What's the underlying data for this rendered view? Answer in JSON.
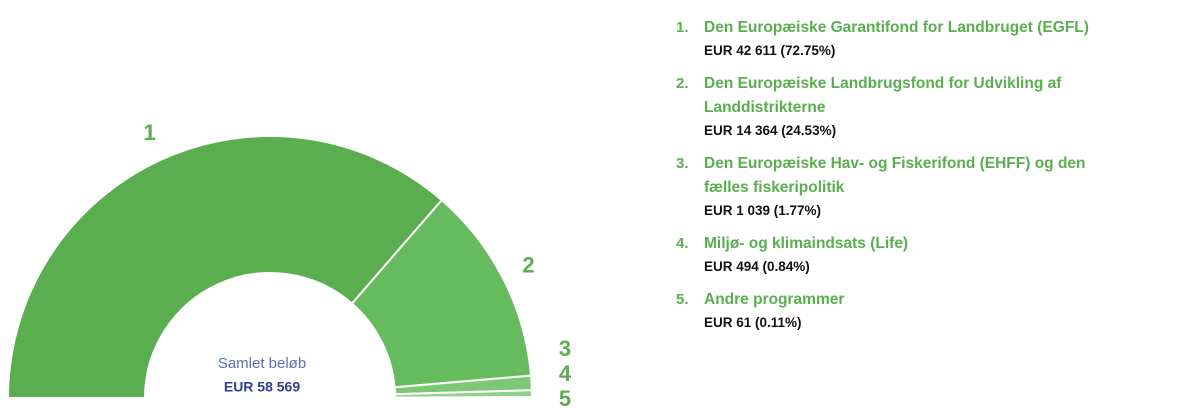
{
  "chart_data": {
    "type": "semi-donut",
    "categories": [
      "Den Europæiske Garantifond for Landbruget (EGFL)",
      "Den Europæiske Landbrugsfond for Udvikling af Landdistrikterne",
      "Den Europæiske Hav- og Fiskerifond (EHFF) og den fælles fiskeripolitik",
      "Miljø- og klimaindsats (Life)",
      "Andre programmer"
    ],
    "legend_keys": [
      "1.",
      "2.",
      "3.",
      "4.",
      "5."
    ],
    "slice_labels": [
      "1",
      "2",
      "3",
      "4",
      "5"
    ],
    "values": [
      42611,
      14364,
      1039,
      494,
      61
    ],
    "value_labels": [
      "EUR 42 611 (72.75%)",
      "EUR 14 364 (24.53%)",
      "EUR 1 039 (1.77%)",
      "EUR 494 (0.84%)",
      "EUR 61 (0.11%)"
    ],
    "colors": [
      "#5aae50",
      "#66bb5f",
      "#7cc874",
      "#8fd187",
      "#a3db9c"
    ],
    "center_label": "Samlet beløb",
    "total": 58569,
    "total_label": "EUR 58 569"
  }
}
